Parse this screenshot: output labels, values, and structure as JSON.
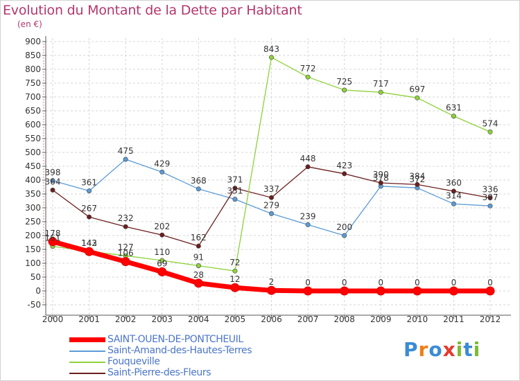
{
  "title": "Evolution du Montant de la Dette par Habitant",
  "subtitle": "(en €)",
  "logo": {
    "text": "Proxiti",
    "letters": [
      "P",
      "r",
      "o",
      "x",
      "i",
      "t",
      "i"
    ],
    "colors": [
      "#3a8bd6",
      "#ef7d16",
      "#3a8bd6",
      "#e43b2f",
      "#7dbb32",
      "#3a8bd6",
      "#7dbb32"
    ]
  },
  "chart_data": {
    "type": "line",
    "x": [
      "2000",
      "2001",
      "2002",
      "2003",
      "2004",
      "2005",
      "2006",
      "2007",
      "2008",
      "2009",
      "2010",
      "2011",
      "2012"
    ],
    "ylim": [
      -50,
      900
    ],
    "yticks": [
      "-50",
      "0",
      "50",
      "100",
      "150",
      "200",
      "250",
      "300",
      "350",
      "400",
      "450",
      "500",
      "550",
      "600",
      "650",
      "700",
      "750",
      "800",
      "850",
      "900"
    ],
    "grid": true,
    "legend_position": "bottom-left",
    "series": [
      {
        "name": "Saint-Amand-des-Hautes-Terres",
        "color": "#5b9bd5",
        "values": [
          398,
          361,
          475,
          429,
          368,
          331,
          279,
          239,
          200,
          378,
          372,
          314,
          307
        ],
        "labels": [
          "398",
          "361",
          "475",
          "429",
          "368",
          "331",
          "279",
          "239",
          "200",
          "378",
          "372",
          "314",
          "307"
        ]
      },
      {
        "name": "Saint-Pierre-des-Fleurs",
        "color": "#6b1e1e",
        "values": [
          364,
          267,
          232,
          202,
          162,
          371,
          337,
          448,
          423,
          390,
          384,
          360,
          336
        ],
        "labels": [
          "364",
          "267",
          "232",
          "202",
          "162",
          "371",
          "337",
          "448",
          "423",
          "390",
          "384",
          "360",
          "336"
        ]
      },
      {
        "name": "Fouqueville",
        "color": "#8ed13a",
        "values": [
          161,
          143,
          127,
          110,
          91,
          72,
          843,
          772,
          725,
          717,
          697,
          631,
          574
        ],
        "labels": [
          "161",
          "143",
          "127",
          "110",
          "91",
          "72",
          "843",
          "772",
          "725",
          "717",
          "697",
          "631",
          "574"
        ]
      },
      {
        "name": "SAINT-OUEN-DE-PONTCHEUIL",
        "color": "#ff0000",
        "values": [
          178,
          142,
          106,
          69,
          28,
          12,
          2,
          0,
          0,
          0,
          0,
          0,
          0
        ],
        "labels": [
          "178",
          "142",
          "106",
          "69",
          "28",
          "12",
          "2",
          "0",
          "0",
          "0",
          "0",
          "0",
          "0"
        ]
      }
    ],
    "legend": [
      {
        "name": "SAINT-OUEN-DE-PONTCHEUIL",
        "color": "#ff0000"
      },
      {
        "name": "Saint-Amand-des-Hautes-Terres",
        "color": "#5b9bd5"
      },
      {
        "name": "Fouqueville",
        "color": "#8ed13a"
      },
      {
        "name": "Saint-Pierre-des-Fleurs",
        "color": "#6b1e1e"
      }
    ]
  }
}
